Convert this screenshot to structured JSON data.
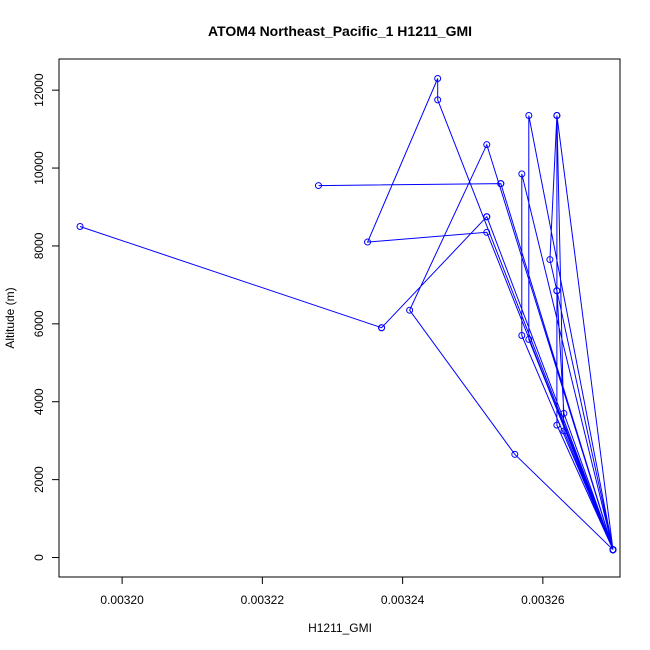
{
  "chart_data": {
    "type": "line",
    "title": "ATOM4 Northeast_Pacific_1 H1211_GMI",
    "xlabel": "H1211_GMI",
    "ylabel": "Altitude (m)",
    "xlim": [
      0.003191,
      0.003271
    ],
    "ylim": [
      -500,
      12800
    ],
    "x_ticks": [
      0.0032,
      0.00322,
      0.00324,
      0.00326
    ],
    "x_tick_labels": [
      "0.00320",
      "0.00322",
      "0.00324",
      "0.00326"
    ],
    "y_ticks": [
      0,
      2000,
      4000,
      6000,
      8000,
      10000,
      12000
    ],
    "y_tick_labels": [
      "0",
      "2000",
      "4000",
      "6000",
      "8000",
      "10000",
      "12000"
    ],
    "series": [
      {
        "color": "#0000ff",
        "marker": "open-circle",
        "points": [
          {
            "x": 0.00327,
            "y": 200
          },
          {
            "x": 0.003258,
            "y": 11350
          },
          {
            "x": 0.003258,
            "y": 5600
          },
          {
            "x": 0.00327,
            "y": 200
          },
          {
            "x": 0.003262,
            "y": 11350
          },
          {
            "x": 0.003262,
            "y": 3400
          },
          {
            "x": 0.00327,
            "y": 200
          },
          {
            "x": 0.003262,
            "y": 6850
          },
          {
            "x": 0.003261,
            "y": 7650
          },
          {
            "x": 0.003262,
            "y": 11350
          },
          {
            "x": 0.003263,
            "y": 3250
          },
          {
            "x": 0.00327,
            "y": 200
          },
          {
            "x": 0.003252,
            "y": 8350
          },
          {
            "x": 0.003235,
            "y": 8100
          },
          {
            "x": 0.003245,
            "y": 12300
          },
          {
            "x": 0.003245,
            "y": 11750
          },
          {
            "x": 0.00327,
            "y": 200
          },
          {
            "x": 0.003257,
            "y": 9850
          },
          {
            "x": 0.003257,
            "y": 5700
          },
          {
            "x": 0.00327,
            "y": 200
          },
          {
            "x": 0.003252,
            "y": 10600
          },
          {
            "x": 0.003241,
            "y": 6350
          },
          {
            "x": 0.003256,
            "y": 2650
          },
          {
            "x": 0.00327,
            "y": 200
          },
          {
            "x": 0.003263,
            "y": 3700
          },
          {
            "x": 0.003262,
            "y": 6850
          },
          {
            "x": 0.00327,
            "y": 200
          },
          {
            "x": 0.003252,
            "y": 8750
          },
          {
            "x": 0.003237,
            "y": 5900
          },
          {
            "x": 0.003194,
            "y": 8500
          },
          {
            "x": 0.003237,
            "y": 5900
          },
          {
            "x": 0.003252,
            "y": 8750
          },
          {
            "x": 0.00327,
            "y": 200
          },
          {
            "x": 0.003254,
            "y": 9600
          },
          {
            "x": 0.003228,
            "y": 9550
          },
          {
            "x": 0.003254,
            "y": 9600
          },
          {
            "x": 0.00327,
            "y": 200
          }
        ]
      }
    ],
    "grid": false
  }
}
